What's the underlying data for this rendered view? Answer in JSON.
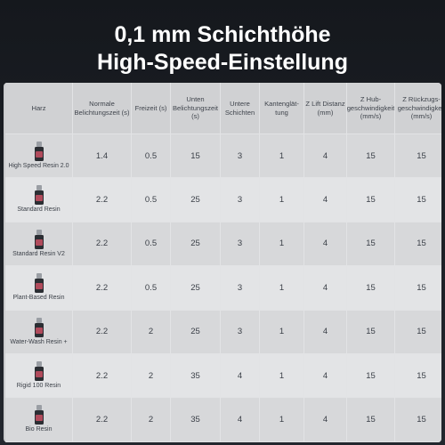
{
  "title": {
    "line1": "0,1 mm Schichthöhe",
    "line2": "High-Speed-Einstellung"
  },
  "table": {
    "headers": [
      "Harz",
      "Normale Belichtungszeit (s)",
      "Freizeit (s)",
      "Unten Belichtungszeit (s)",
      "Untere Schichten",
      "Kantenglät-tung",
      "Z Lift Distanz (mm)",
      "Z Hub-geschwindigkeit (mm/s)",
      "Z Rückzugs-geschwindigkeit (mm/s)"
    ],
    "rows": [
      {
        "resin": "High Speed Resin 2.0",
        "values": [
          "1.4",
          "0.5",
          "15",
          "3",
          "1",
          "4",
          "15",
          "15"
        ]
      },
      {
        "resin": "Standard Resin",
        "values": [
          "2.2",
          "0.5",
          "25",
          "3",
          "1",
          "4",
          "15",
          "15"
        ]
      },
      {
        "resin": "Standard Resin V2",
        "values": [
          "2.2",
          "0.5",
          "25",
          "3",
          "1",
          "4",
          "15",
          "15"
        ]
      },
      {
        "resin": "Plant-Based Resin",
        "values": [
          "2.2",
          "0.5",
          "25",
          "3",
          "1",
          "4",
          "15",
          "15"
        ]
      },
      {
        "resin": "Water-Wash Resin +",
        "values": [
          "2.2",
          "2",
          "25",
          "3",
          "1",
          "4",
          "15",
          "15"
        ]
      },
      {
        "resin": "Rigid 100 Resin",
        "values": [
          "2.2",
          "2",
          "35",
          "4",
          "1",
          "4",
          "15",
          "15"
        ]
      },
      {
        "resin": "Bio Resin",
        "values": [
          "2.2",
          "2",
          "35",
          "4",
          "1",
          "4",
          "15",
          "15"
        ]
      }
    ]
  },
  "icons": {
    "resin": "resin-bottle-icon"
  },
  "colors": {
    "background": "#1b1e23",
    "panel": "#c9cacc",
    "bottle": "#2b2e33",
    "bottle_label": "#b14b5c"
  }
}
